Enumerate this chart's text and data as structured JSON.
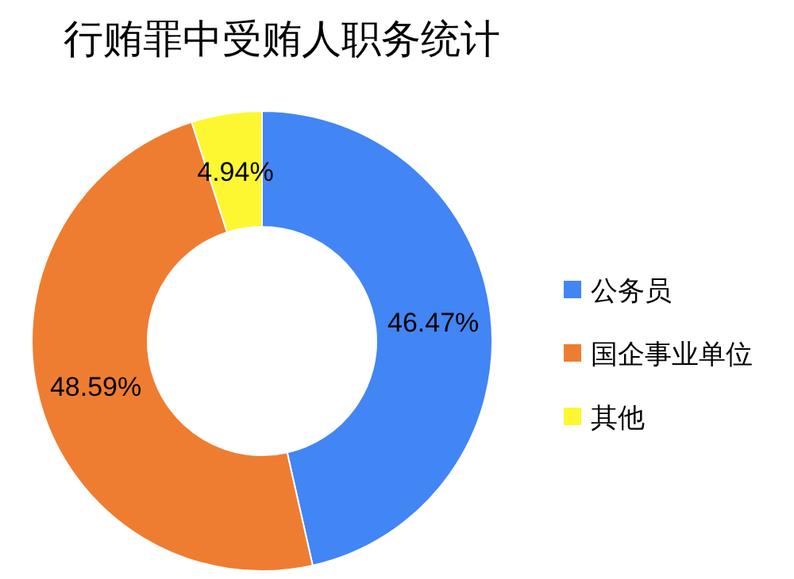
{
  "chart_data": {
    "type": "donut",
    "title": "行贿罪中受贿人职务统计",
    "categories": [
      "公务员",
      "国企事业单位",
      "其他"
    ],
    "values": [
      46.47,
      48.59,
      4.94
    ],
    "value_labels": [
      "46.47%",
      "48.59%",
      "4.94%"
    ],
    "colors": [
      "#4285f4",
      "#ef7d31",
      "#fdf731"
    ],
    "legend": "right"
  }
}
